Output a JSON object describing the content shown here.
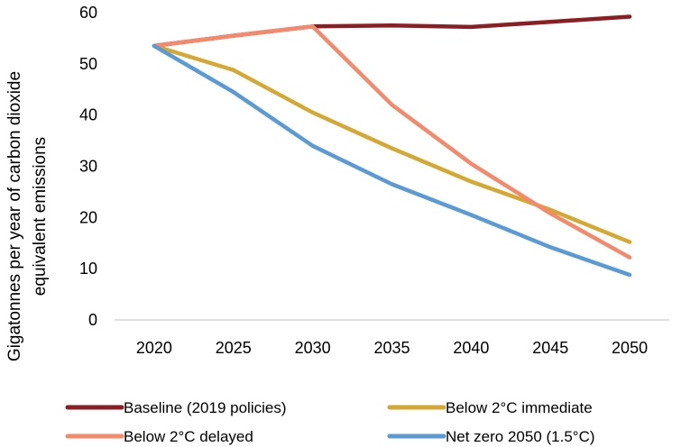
{
  "chart_data": {
    "type": "line",
    "title": "",
    "xlabel": "",
    "ylabel_lines": [
      "Gigatonnes per year of carbon dioxide",
      "equivalent emissions"
    ],
    "x": [
      "2020",
      "2025",
      "2030",
      "2035",
      "2040",
      "2045",
      "2050"
    ],
    "ylim": [
      0,
      60
    ],
    "yticks": [
      "0",
      "10",
      "20",
      "30",
      "40",
      "50",
      "60"
    ],
    "grid": false,
    "legend_position": "bottom",
    "series": [
      {
        "name": "Baseline (2019 policies)",
        "color": "#8b1e23",
        "values": [
          53.5,
          55.5,
          57.3,
          57.5,
          57.2,
          58.2,
          59.2
        ]
      },
      {
        "name": "Below 2°C immediate",
        "color": "#d4a832",
        "values": [
          53.5,
          48.8,
          40.5,
          33.5,
          27.0,
          21.5,
          15.2
        ]
      },
      {
        "name": "Below 2°C delayed",
        "color": "#f4896b",
        "values": [
          53.5,
          55.5,
          57.3,
          42.0,
          30.5,
          20.8,
          12.2
        ]
      },
      {
        "name": "Net zero 2050 (1.5°C)",
        "color": "#5b9bd5",
        "values": [
          53.5,
          44.5,
          34.0,
          26.5,
          20.5,
          14.2,
          8.8
        ]
      }
    ]
  }
}
